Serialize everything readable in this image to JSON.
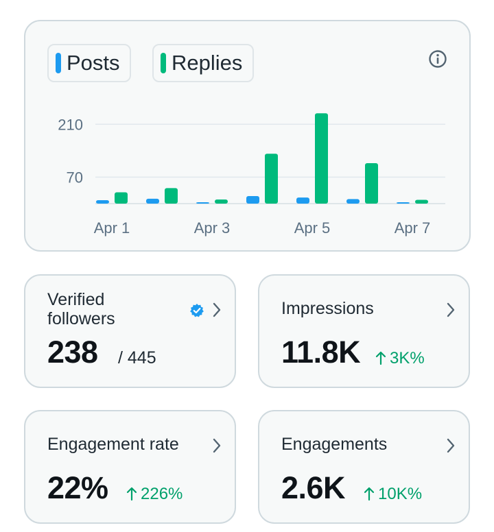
{
  "legend": {
    "posts_label": "Posts",
    "replies_label": "Replies",
    "posts_color": "#1d9bf0",
    "replies_color": "#00ba7c"
  },
  "chart_data": {
    "type": "bar",
    "categories": [
      "Apr 1",
      "Apr 2",
      "Apr 3",
      "Apr 4",
      "Apr 5",
      "Apr 6",
      "Apr 7"
    ],
    "x_tick_labels": [
      "Apr 1",
      "Apr 3",
      "Apr 5",
      "Apr 7"
    ],
    "y_ticks": [
      70,
      210
    ],
    "ylim": [
      0,
      245
    ],
    "grid": true,
    "series": [
      {
        "name": "Posts",
        "color": "#1d9bf0",
        "values": [
          9,
          13,
          2,
          20,
          16,
          12,
          2
        ]
      },
      {
        "name": "Replies",
        "color": "#00ba7c",
        "values": [
          30,
          41,
          11,
          132,
          239,
          107,
          10
        ]
      }
    ]
  },
  "cards": {
    "verified": {
      "title": "Verified followers",
      "value": "238",
      "total": "/ 445"
    },
    "impressions": {
      "title": "Impressions",
      "value": "11.8K",
      "change": "3K%"
    },
    "engagement_rate": {
      "title": "Engagement rate",
      "value": "22%",
      "change": "226%"
    },
    "engagements": {
      "title": "Engagements",
      "value": "2.6K",
      "change": "10K%"
    }
  },
  "icons": {
    "info": "info-icon",
    "verified_badge": "verified-badge-icon",
    "chevron": "chevron-right-icon",
    "arrow_up": "arrow-up-icon"
  }
}
